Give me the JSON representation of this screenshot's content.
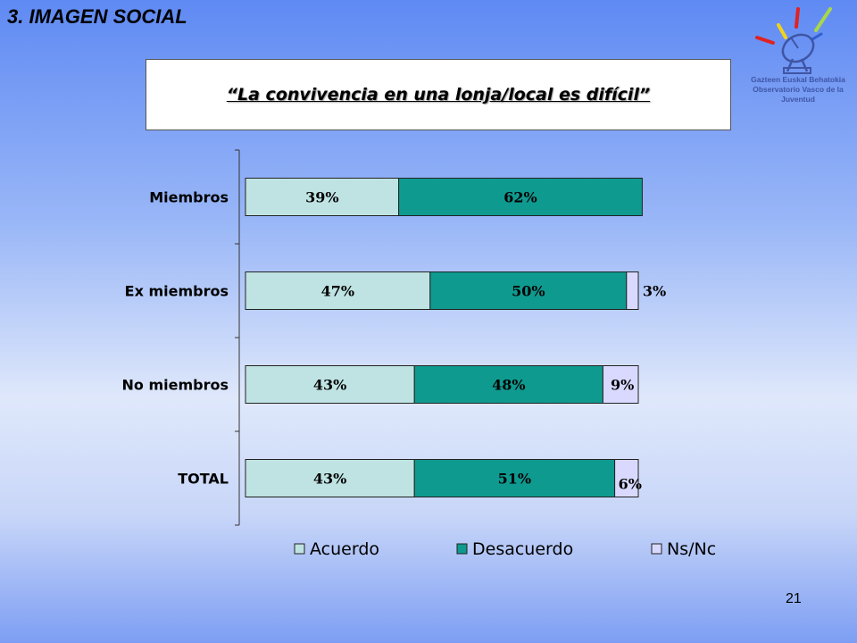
{
  "header": {
    "section_title": "3. IMAGEN SOCIAL",
    "logo_line1": "Gazteen Euskal Behatokia",
    "logo_line2": "Observatorio Vasco de la Juventud"
  },
  "footer": {
    "page_number": "21"
  },
  "colors": {
    "acuerdo": "#bfe3e3",
    "desacuerdo": "#0f9a90",
    "nsnc": "#d9d9ff"
  },
  "chart_data": {
    "type": "bar",
    "orientation": "horizontal",
    "stacked": true,
    "title": "“La convivencia en una lonja/local es difícil”",
    "categories": [
      "Miembros",
      "Ex miembros",
      "No miembros",
      "TOTAL"
    ],
    "series": [
      {
        "name": "Acuerdo",
        "values": [
          39,
          47,
          43,
          43
        ],
        "labels": [
          "39%",
          "47%",
          "43%",
          "43%"
        ]
      },
      {
        "name": "Desacuerdo",
        "values": [
          62,
          50,
          48,
          51
        ],
        "labels": [
          "62%",
          "50%",
          "48%",
          "51%"
        ]
      },
      {
        "name": "Ns/Nc",
        "values": [
          0,
          3,
          9,
          6
        ],
        "labels": [
          "",
          "3%",
          "9%",
          "6%"
        ]
      }
    ],
    "legend": "bottom",
    "grid": false
  }
}
